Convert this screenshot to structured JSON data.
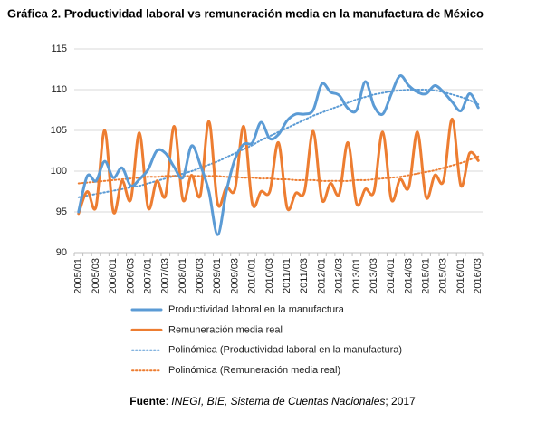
{
  "chart_data": {
    "type": "line",
    "title": "Gráfica 2. Productividad laboral vs remuneración media en la manufactura de México",
    "categories": [
      "2005/01",
      null,
      "2005/03",
      null,
      "2006/01",
      null,
      "2006/03",
      null,
      "2007/01",
      null,
      "2007/03",
      null,
      "2008/01",
      null,
      "2008/03",
      null,
      "2009/01",
      null,
      "2009/03",
      null,
      "2010/01",
      null,
      "2010/03",
      null,
      "2011/01",
      null,
      "2011/03",
      null,
      "2012/01",
      null,
      "2012/03",
      null,
      "2013/01",
      null,
      "2013/03",
      null,
      "2014/01",
      null,
      "2014/03",
      null,
      "2015/01",
      null,
      "2015/03",
      null,
      "2016/01",
      null,
      "2016/03"
    ],
    "series": [
      {
        "name": "Productividad laboral en la manufactura",
        "color": "#5b9bd5",
        "line_style": "solid",
        "values": [
          95.0,
          99.4,
          98.8,
          101.2,
          99.2,
          100.4,
          98.2,
          99.0,
          100.2,
          102.5,
          102.2,
          100.5,
          99.2,
          103.1,
          100.8,
          97.5,
          92.2,
          97.5,
          101.5,
          103.3,
          103.5,
          106.0,
          104.0,
          104.5,
          106.2,
          107.0,
          107.0,
          107.5,
          110.7,
          109.7,
          109.3,
          107.7,
          107.5,
          111.0,
          108.0,
          107.0,
          109.5,
          111.7,
          110.5,
          109.7,
          109.5,
          110.5,
          109.7,
          108.5,
          107.4,
          109.5,
          107.8
        ]
      },
      {
        "name": "Remuneración media real",
        "color": "#ed7d31",
        "line_style": "solid",
        "values": [
          94.8,
          97.5,
          95.6,
          105.0,
          95.0,
          98.8,
          96.5,
          104.7,
          95.5,
          98.8,
          97.0,
          105.5,
          96.5,
          99.5,
          97.0,
          106.1,
          96.0,
          98.0,
          97.8,
          105.5,
          96.0,
          97.5,
          97.5,
          103.5,
          95.5,
          97.3,
          97.5,
          104.9,
          96.5,
          98.5,
          97.2,
          103.5,
          96.0,
          97.8,
          97.5,
          104.8,
          96.5,
          99.0,
          98.0,
          104.8,
          96.8,
          99.5,
          98.8,
          106.4,
          98.2,
          102.2,
          101.3
        ]
      },
      {
        "name": "Polinómica (Productividad laboral en la manufactura)",
        "color": "#5b9bd5",
        "line_style": "dotted",
        "values": [
          96.8,
          97.0,
          97.2,
          97.4,
          97.6,
          97.8,
          98.0,
          98.2,
          98.5,
          98.8,
          99.1,
          99.4,
          99.7,
          100.0,
          100.4,
          100.8,
          101.2,
          101.7,
          102.2,
          102.7,
          103.2,
          103.8,
          104.3,
          104.8,
          105.3,
          105.8,
          106.3,
          106.8,
          107.2,
          107.6,
          108.0,
          108.4,
          108.8,
          109.1,
          109.4,
          109.6,
          109.8,
          109.9,
          110.0,
          110.0,
          110.0,
          109.9,
          109.7,
          109.4,
          109.1,
          108.7,
          108.2
        ]
      },
      {
        "name": "Polinómica (Remuneración media real)",
        "color": "#ed7d31",
        "line_style": "dotted",
        "values": [
          98.5,
          98.6,
          98.7,
          98.8,
          98.9,
          99.0,
          99.1,
          99.2,
          99.3,
          99.3,
          99.4,
          99.4,
          99.4,
          99.4,
          99.4,
          99.4,
          99.4,
          99.3,
          99.3,
          99.2,
          99.2,
          99.1,
          99.1,
          99.0,
          99.0,
          98.9,
          98.9,
          98.9,
          98.8,
          98.8,
          98.8,
          98.8,
          98.9,
          98.9,
          99.0,
          99.1,
          99.2,
          99.3,
          99.5,
          99.7,
          99.9,
          100.1,
          100.4,
          100.7,
          101.0,
          101.4,
          101.8
        ]
      }
    ],
    "ylim": [
      90,
      115
    ],
    "yticks": [
      90,
      95,
      100,
      105,
      110,
      115
    ],
    "grid": true,
    "legend": "bottom",
    "source": {
      "label": "Fuente",
      "separator": ": ",
      "text": "INEGI, BIE, Sistema de Cuentas Nacionales",
      "rest": "; 2017"
    }
  }
}
